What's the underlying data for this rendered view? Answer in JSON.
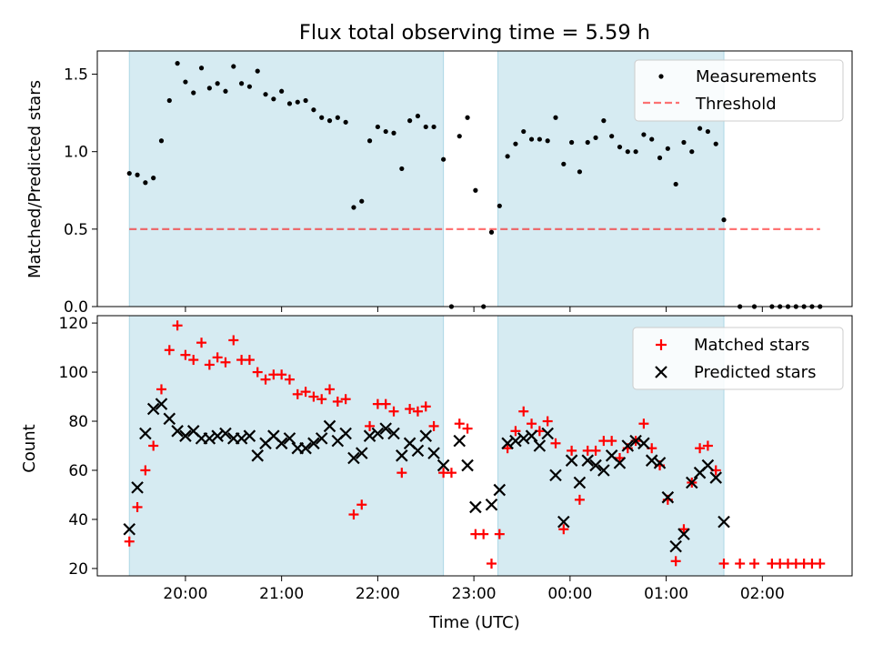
{
  "title": "Flux total observing time = 5.59 h",
  "colors": {
    "shade": "#add8e6",
    "measurement": "#000000",
    "threshold": "#ff0000",
    "matched": "#ff0000",
    "predicted": "#000000"
  },
  "chart_data": [
    {
      "type": "scatter",
      "panel": "top",
      "ylabel": "Matched/Predicted stars",
      "ylim": [
        0,
        1.65
      ],
      "yticks": [
        "0.0",
        "0.5",
        "1.0",
        "1.5"
      ],
      "grid": false,
      "legend_position": "top-right",
      "shaded_intervals": [
        [
          "19:25",
          "22:41"
        ],
        [
          "23:15",
          "01:36"
        ]
      ],
      "threshold": {
        "name": "Threshold",
        "value": 0.5,
        "x_range": [
          "19:25",
          "02:36"
        ],
        "style": "dashed"
      },
      "series": [
        {
          "name": "Measurements",
          "marker": "dot",
          "points": [
            [
              "19:25",
              0.86
            ],
            [
              "19:30",
              0.85
            ],
            [
              "19:35",
              0.8
            ],
            [
              "19:40",
              0.83
            ],
            [
              "19:45",
              1.07
            ],
            [
              "19:50",
              1.33
            ],
            [
              "19:55",
              1.57
            ],
            [
              "20:00",
              1.45
            ],
            [
              "20:05",
              1.38
            ],
            [
              "20:10",
              1.54
            ],
            [
              "20:15",
              1.41
            ],
            [
              "20:20",
              1.44
            ],
            [
              "20:25",
              1.39
            ],
            [
              "20:30",
              1.55
            ],
            [
              "20:35",
              1.44
            ],
            [
              "20:40",
              1.42
            ],
            [
              "20:45",
              1.52
            ],
            [
              "20:50",
              1.37
            ],
            [
              "20:55",
              1.34
            ],
            [
              "21:00",
              1.39
            ],
            [
              "21:05",
              1.31
            ],
            [
              "21:10",
              1.32
            ],
            [
              "21:15",
              1.33
            ],
            [
              "21:20",
              1.27
            ],
            [
              "21:25",
              1.22
            ],
            [
              "21:30",
              1.2
            ],
            [
              "21:35",
              1.22
            ],
            [
              "21:40",
              1.19
            ],
            [
              "21:45",
              0.64
            ],
            [
              "21:50",
              0.68
            ],
            [
              "21:55",
              1.07
            ],
            [
              "22:00",
              1.16
            ],
            [
              "22:05",
              1.13
            ],
            [
              "22:10",
              1.12
            ],
            [
              "22:15",
              0.89
            ],
            [
              "22:20",
              1.2
            ],
            [
              "22:25",
              1.23
            ],
            [
              "22:30",
              1.16
            ],
            [
              "22:35",
              1.16
            ],
            [
              "22:41",
              0.95
            ],
            [
              "22:46",
              0.0
            ],
            [
              "22:51",
              1.1
            ],
            [
              "22:56",
              1.22
            ],
            [
              "23:01",
              0.75
            ],
            [
              "23:06",
              0.0
            ],
            [
              "23:11",
              0.48
            ],
            [
              "23:16",
              0.65
            ],
            [
              "23:21",
              0.97
            ],
            [
              "23:26",
              1.05
            ],
            [
              "23:31",
              1.13
            ],
            [
              "23:36",
              1.08
            ],
            [
              "23:41",
              1.08
            ],
            [
              "23:46",
              1.07
            ],
            [
              "23:51",
              1.22
            ],
            [
              "23:56",
              0.92
            ],
            [
              "00:01",
              1.06
            ],
            [
              "00:06",
              0.87
            ],
            [
              "00:11",
              1.06
            ],
            [
              "00:16",
              1.09
            ],
            [
              "00:21",
              1.2
            ],
            [
              "00:26",
              1.1
            ],
            [
              "00:31",
              1.03
            ],
            [
              "00:36",
              1.0
            ],
            [
              "00:41",
              1.0
            ],
            [
              "00:46",
              1.11
            ],
            [
              "00:51",
              1.08
            ],
            [
              "00:56",
              0.96
            ],
            [
              "01:01",
              1.02
            ],
            [
              "01:06",
              0.79
            ],
            [
              "01:11",
              1.06
            ],
            [
              "01:16",
              1.0
            ],
            [
              "01:21",
              1.15
            ],
            [
              "01:26",
              1.13
            ],
            [
              "01:31",
              1.05
            ],
            [
              "01:36",
              0.56
            ],
            [
              "01:46",
              0.0
            ],
            [
              "01:55",
              0.0
            ],
            [
              "02:06",
              0.0
            ],
            [
              "02:11",
              0.0
            ],
            [
              "02:16",
              0.0
            ],
            [
              "02:21",
              0.0
            ],
            [
              "02:26",
              0.0
            ],
            [
              "02:31",
              0.0
            ],
            [
              "02:36",
              0.0
            ]
          ]
        }
      ]
    },
    {
      "type": "scatter",
      "panel": "bottom",
      "xlabel": "Time (UTC)",
      "ylabel": "Count",
      "xlim": [
        "19:05",
        "02:56"
      ],
      "ylim": [
        17,
        123
      ],
      "xticks": [
        "20:00",
        "21:00",
        "22:00",
        "23:00",
        "00:00",
        "01:00",
        "02:00"
      ],
      "yticks": [
        "20",
        "40",
        "60",
        "80",
        "100",
        "120"
      ],
      "grid": false,
      "legend_position": "top-right",
      "shaded_intervals": [
        [
          "19:25",
          "22:41"
        ],
        [
          "23:15",
          "01:36"
        ]
      ],
      "series": [
        {
          "name": "Matched stars",
          "marker": "plus",
          "points": [
            [
              "19:25",
              31
            ],
            [
              "19:30",
              45
            ],
            [
              "19:35",
              60
            ],
            [
              "19:40",
              70
            ],
            [
              "19:45",
              93
            ],
            [
              "19:50",
              109
            ],
            [
              "19:55",
              119
            ],
            [
              "20:00",
              107
            ],
            [
              "20:05",
              105
            ],
            [
              "20:10",
              112
            ],
            [
              "20:15",
              103
            ],
            [
              "20:20",
              106
            ],
            [
              "20:25",
              104
            ],
            [
              "20:30",
              113
            ],
            [
              "20:35",
              105
            ],
            [
              "20:40",
              105
            ],
            [
              "20:45",
              100
            ],
            [
              "20:50",
              97
            ],
            [
              "20:55",
              99
            ],
            [
              "21:00",
              99
            ],
            [
              "21:05",
              97
            ],
            [
              "21:10",
              91
            ],
            [
              "21:15",
              92
            ],
            [
              "21:20",
              90
            ],
            [
              "21:25",
              89
            ],
            [
              "21:30",
              93
            ],
            [
              "21:35",
              88
            ],
            [
              "21:40",
              89
            ],
            [
              "21:45",
              42
            ],
            [
              "21:50",
              46
            ],
            [
              "21:55",
              78
            ],
            [
              "22:00",
              87
            ],
            [
              "22:05",
              87
            ],
            [
              "22:10",
              84
            ],
            [
              "22:15",
              59
            ],
            [
              "22:20",
              85
            ],
            [
              "22:25",
              84
            ],
            [
              "22:30",
              86
            ],
            [
              "22:35",
              78
            ],
            [
              "22:41",
              59
            ],
            [
              "22:46",
              59
            ],
            [
              "22:51",
              79
            ],
            [
              "22:56",
              77
            ],
            [
              "23:01",
              34
            ],
            [
              "23:06",
              34
            ],
            [
              "23:11",
              22
            ],
            [
              "23:16",
              34
            ],
            [
              "23:21",
              69
            ],
            [
              "23:26",
              76
            ],
            [
              "23:31",
              84
            ],
            [
              "23:36",
              79
            ],
            [
              "23:41",
              76
            ],
            [
              "23:46",
              80
            ],
            [
              "23:51",
              71
            ],
            [
              "23:56",
              36
            ],
            [
              "00:01",
              68
            ],
            [
              "00:06",
              48
            ],
            [
              "00:11",
              68
            ],
            [
              "00:16",
              68
            ],
            [
              "00:21",
              72
            ],
            [
              "00:26",
              72
            ],
            [
              "00:31",
              65
            ],
            [
              "00:36",
              69
            ],
            [
              "00:41",
              72
            ],
            [
              "00:46",
              79
            ],
            [
              "00:51",
              69
            ],
            [
              "00:56",
              62
            ],
            [
              "01:01",
              48
            ],
            [
              "01:06",
              23
            ],
            [
              "01:11",
              36
            ],
            [
              "01:16",
              55
            ],
            [
              "01:21",
              69
            ],
            [
              "01:26",
              70
            ],
            [
              "01:31",
              60
            ],
            [
              "01:36",
              22
            ],
            [
              "01:46",
              22
            ],
            [
              "01:55",
              22
            ],
            [
              "02:06",
              22
            ],
            [
              "02:11",
              22
            ],
            [
              "02:16",
              22
            ],
            [
              "02:21",
              22
            ],
            [
              "02:26",
              22
            ],
            [
              "02:31",
              22
            ],
            [
              "02:36",
              22
            ]
          ]
        },
        {
          "name": "Predicted stars",
          "marker": "x",
          "points": [
            [
              "19:25",
              36
            ],
            [
              "19:30",
              53
            ],
            [
              "19:35",
              75
            ],
            [
              "19:40",
              85
            ],
            [
              "19:45",
              87
            ],
            [
              "19:50",
              81
            ],
            [
              "19:55",
              76
            ],
            [
              "20:00",
              74
            ],
            [
              "20:05",
              76
            ],
            [
              "20:10",
              73
            ],
            [
              "20:15",
              73
            ],
            [
              "20:20",
              74
            ],
            [
              "20:25",
              75
            ],
            [
              "20:30",
              73
            ],
            [
              "20:35",
              73
            ],
            [
              "20:40",
              74
            ],
            [
              "20:45",
              66
            ],
            [
              "20:50",
              71
            ],
            [
              "20:55",
              74
            ],
            [
              "21:00",
              71
            ],
            [
              "21:05",
              73
            ],
            [
              "21:10",
              69
            ],
            [
              "21:15",
              69
            ],
            [
              "21:20",
              71
            ],
            [
              "21:25",
              73
            ],
            [
              "21:30",
              78
            ],
            [
              "21:35",
              72
            ],
            [
              "21:40",
              75
            ],
            [
              "21:45",
              65
            ],
            [
              "21:50",
              67
            ],
            [
              "21:55",
              74
            ],
            [
              "22:00",
              75
            ],
            [
              "22:05",
              77
            ],
            [
              "22:10",
              75
            ],
            [
              "22:15",
              66
            ],
            [
              "22:20",
              71
            ],
            [
              "22:25",
              68
            ],
            [
              "22:30",
              74
            ],
            [
              "22:35",
              67
            ],
            [
              "22:41",
              62
            ],
            [
              "22:51",
              72
            ],
            [
              "22:56",
              62
            ],
            [
              "23:01",
              45
            ],
            [
              "23:11",
              46
            ],
            [
              "23:16",
              52
            ],
            [
              "23:21",
              71
            ],
            [
              "23:26",
              72
            ],
            [
              "23:31",
              73
            ],
            [
              "23:36",
              74
            ],
            [
              "23:41",
              70
            ],
            [
              "23:46",
              75
            ],
            [
              "23:51",
              58
            ],
            [
              "23:56",
              39
            ],
            [
              "00:01",
              64
            ],
            [
              "00:06",
              55
            ],
            [
              "00:11",
              64
            ],
            [
              "00:16",
              62
            ],
            [
              "00:21",
              60
            ],
            [
              "00:26",
              66
            ],
            [
              "00:31",
              63
            ],
            [
              "00:36",
              70
            ],
            [
              "00:41",
              72
            ],
            [
              "00:46",
              71
            ],
            [
              "00:51",
              64
            ],
            [
              "00:56",
              63
            ],
            [
              "01:01",
              49
            ],
            [
              "01:06",
              29
            ],
            [
              "01:11",
              34
            ],
            [
              "01:16",
              55
            ],
            [
              "01:21",
              59
            ],
            [
              "01:26",
              62
            ],
            [
              "01:31",
              57
            ],
            [
              "01:36",
              39
            ]
          ]
        }
      ]
    }
  ]
}
